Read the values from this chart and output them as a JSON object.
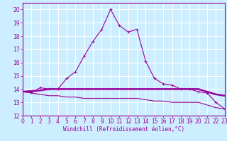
{
  "title": "",
  "xlabel": "Windchill (Refroidissement éolien,°C)",
  "background_color": "#cceeff",
  "grid_color": "#ffffff",
  "line_color": "#990099",
  "xlim": [
    0,
    23
  ],
  "ylim": [
    12,
    20.5
  ],
  "xticks": [
    0,
    1,
    2,
    3,
    4,
    5,
    6,
    7,
    8,
    9,
    10,
    11,
    12,
    13,
    14,
    15,
    16,
    17,
    18,
    19,
    20,
    21,
    22,
    23
  ],
  "yticks": [
    12,
    13,
    14,
    15,
    16,
    17,
    18,
    19,
    20
  ],
  "curve1_x": [
    0,
    1,
    2,
    3,
    4,
    5,
    6,
    7,
    8,
    9,
    10,
    11,
    12,
    13,
    14,
    15,
    16,
    17,
    18,
    19,
    20,
    21,
    22,
    23
  ],
  "curve1_y": [
    13.8,
    13.75,
    14.1,
    14.0,
    14.0,
    14.8,
    15.3,
    16.5,
    17.6,
    18.5,
    20.0,
    18.8,
    18.3,
    18.5,
    16.1,
    14.8,
    14.4,
    14.3,
    14.0,
    14.0,
    13.8,
    13.7,
    13.0,
    12.5
  ],
  "curve2_x": [
    0,
    1,
    2,
    3,
    4,
    5,
    6,
    7,
    8,
    9,
    10,
    11,
    12,
    13,
    14,
    15,
    16,
    17,
    18,
    19,
    20,
    21,
    22,
    23
  ],
  "curve2_y": [
    13.8,
    13.85,
    13.9,
    14.0,
    14.0,
    14.0,
    14.0,
    14.0,
    14.0,
    14.0,
    14.0,
    14.0,
    14.0,
    14.0,
    14.0,
    14.0,
    14.0,
    14.0,
    14.0,
    14.0,
    14.0,
    13.8,
    13.6,
    13.5
  ],
  "curve3_x": [
    0,
    1,
    2,
    3,
    4,
    5,
    6,
    7,
    8,
    9,
    10,
    11,
    12,
    13,
    14,
    15,
    16,
    17,
    18,
    19,
    20,
    21,
    22,
    23
  ],
  "curve3_y": [
    13.8,
    13.7,
    13.6,
    13.5,
    13.5,
    13.4,
    13.4,
    13.3,
    13.3,
    13.3,
    13.3,
    13.3,
    13.3,
    13.3,
    13.2,
    13.1,
    13.1,
    13.0,
    13.0,
    13.0,
    13.0,
    12.8,
    12.6,
    12.5
  ],
  "tick_fontsize": 5.5,
  "xlabel_fontsize": 5.5
}
